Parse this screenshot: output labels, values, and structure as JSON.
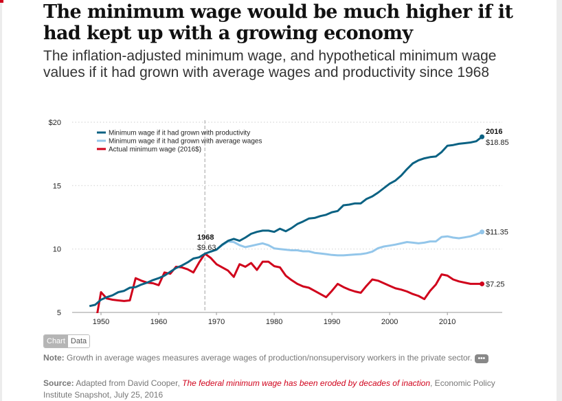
{
  "title": "The minimum wage would be much higher if it had kept up with a growing economy",
  "subtitle": "The inflation-adjusted minimum wage, and hypothetical minimum wage values if it had grown with average wages and productivity since 1968",
  "toggle": {
    "chart": "Chart",
    "data": "Data"
  },
  "note": {
    "label": "Note:",
    "text": "Growth in average wages measures average wages of production/nonsupervisory workers in the private sector.",
    "more": "•••"
  },
  "source": {
    "label": "Source:",
    "prefix": "Adapted from David Cooper, ",
    "link": "The federal minimum wage has been eroded by decades of inaction",
    "suffix": ", Economic Policy Institute Snapshot, July 25, 2016"
  },
  "chart_data": {
    "type": "line",
    "xlim": [
      1945,
      2019.5
    ],
    "ylim": [
      5,
      20
    ],
    "x_ticks": [
      "1950",
      "1960",
      "1970",
      "1980",
      "1990",
      "2000",
      "2010"
    ],
    "x_tick_values": [
      1950,
      1960,
      1970,
      1980,
      1990,
      2000,
      2010
    ],
    "y_ticks": [
      "$20",
      "15",
      "10",
      "5"
    ],
    "y_tick_values": [
      20,
      15,
      10,
      5
    ],
    "grid": "horizontal dotted",
    "legend_placement": "top-left",
    "reference_line": {
      "x": 1968
    },
    "annotations": [
      {
        "year": "1968",
        "value": "$9.63",
        "x": 1968,
        "y": 9.63
      },
      {
        "year": "2016",
        "value": "$18.85",
        "x": 2016,
        "y": 18.85
      },
      {
        "value": "$11.35",
        "x": 2016,
        "y": 11.35
      },
      {
        "value": "$7.25",
        "x": 2016,
        "y": 7.25
      }
    ],
    "series": [
      {
        "name": "Minimum wage if it had grown with productivity",
        "color": "#0b6283",
        "x": [
          1948,
          1949,
          1950,
          1951,
          1952,
          1953,
          1954,
          1955,
          1956,
          1957,
          1958,
          1959,
          1960,
          1961,
          1962,
          1963,
          1964,
          1965,
          1966,
          1967,
          1968,
          1969,
          1970,
          1971,
          1972,
          1973,
          1974,
          1975,
          1976,
          1977,
          1978,
          1979,
          1980,
          1981,
          1982,
          1983,
          1984,
          1985,
          1986,
          1987,
          1988,
          1989,
          1990,
          1991,
          1992,
          1993,
          1994,
          1995,
          1996,
          1997,
          1998,
          1999,
          2000,
          2001,
          2002,
          2003,
          2004,
          2005,
          2006,
          2007,
          2008,
          2009,
          2010,
          2011,
          2012,
          2013,
          2014,
          2015,
          2016
        ],
        "y": [
          5.5,
          5.6,
          6.0,
          6.2,
          6.35,
          6.6,
          6.7,
          6.95,
          7.0,
          7.2,
          7.35,
          7.55,
          7.7,
          7.9,
          8.2,
          8.5,
          8.7,
          8.95,
          9.25,
          9.35,
          9.63,
          9.8,
          9.95,
          10.35,
          10.65,
          10.8,
          10.65,
          10.9,
          11.2,
          11.35,
          11.45,
          11.45,
          11.35,
          11.6,
          11.4,
          11.65,
          11.97,
          12.17,
          12.4,
          12.45,
          12.6,
          12.7,
          12.9,
          13.0,
          13.45,
          13.5,
          13.6,
          13.6,
          13.95,
          14.15,
          14.45,
          14.8,
          15.15,
          15.4,
          15.8,
          16.3,
          16.75,
          17.0,
          17.15,
          17.25,
          17.3,
          17.65,
          18.15,
          18.2,
          18.3,
          18.35,
          18.4,
          18.5,
          18.85
        ]
      },
      {
        "name": "Minimum wage if it had grown with average wages",
        "color": "#93c6ea",
        "x": [
          1968,
          1969,
          1970,
          1971,
          1972,
          1973,
          1974,
          1975,
          1976,
          1977,
          1978,
          1979,
          1980,
          1981,
          1982,
          1983,
          1984,
          1985,
          1986,
          1987,
          1988,
          1989,
          1990,
          1991,
          1992,
          1993,
          1994,
          1995,
          1996,
          1997,
          1998,
          1999,
          2000,
          2001,
          2002,
          2003,
          2004,
          2005,
          2006,
          2007,
          2008,
          2009,
          2010,
          2011,
          2012,
          2013,
          2014,
          2015,
          2016
        ],
        "y": [
          9.63,
          9.8,
          9.95,
          10.3,
          10.6,
          10.55,
          10.3,
          10.15,
          10.25,
          10.35,
          10.45,
          10.3,
          10.05,
          10.0,
          9.95,
          9.9,
          9.9,
          9.82,
          9.82,
          9.7,
          9.65,
          9.6,
          9.53,
          9.5,
          9.5,
          9.53,
          9.57,
          9.6,
          9.67,
          9.8,
          10.07,
          10.2,
          10.27,
          10.35,
          10.45,
          10.55,
          10.5,
          10.45,
          10.5,
          10.6,
          10.6,
          10.95,
          11.0,
          10.9,
          10.85,
          10.92,
          11.0,
          11.15,
          11.35
        ]
      },
      {
        "name": "Actual minimum wage (2016$)",
        "color": "#d0021b",
        "x": [
          1949,
          1950,
          1951,
          1952,
          1953,
          1954,
          1955,
          1956,
          1957,
          1958,
          1959,
          1960,
          1961,
          1962,
          1963,
          1964,
          1965,
          1966,
          1967,
          1968,
          1969,
          1970,
          1971,
          1972,
          1973,
          1974,
          1975,
          1976,
          1977,
          1978,
          1979,
          1980,
          1981,
          1982,
          1983,
          1984,
          1985,
          1986,
          1987,
          1988,
          1989,
          1990,
          1991,
          1992,
          1993,
          1994,
          1995,
          1996,
          1997,
          1998,
          1999,
          2000,
          2001,
          2002,
          2003,
          2004,
          2005,
          2006,
          2007,
          2008,
          2009,
          2010,
          2011,
          2012,
          2013,
          2014,
          2015,
          2016
        ],
        "y": [
          4.0,
          6.6,
          6.1,
          6.0,
          5.95,
          5.9,
          5.95,
          7.7,
          7.5,
          7.35,
          7.3,
          7.15,
          8.15,
          8.05,
          8.6,
          8.55,
          8.4,
          8.15,
          8.95,
          9.63,
          9.3,
          8.8,
          8.55,
          8.3,
          7.8,
          8.8,
          8.6,
          8.9,
          8.35,
          9.0,
          9.0,
          8.65,
          8.55,
          7.9,
          7.55,
          7.25,
          7.05,
          6.95,
          6.7,
          6.45,
          6.2,
          6.7,
          7.25,
          7.0,
          6.8,
          6.65,
          6.55,
          7.1,
          7.6,
          7.5,
          7.3,
          7.1,
          6.9,
          6.8,
          6.65,
          6.45,
          6.3,
          6.05,
          6.7,
          7.2,
          8.0,
          7.9,
          7.6,
          7.45,
          7.35,
          7.25,
          7.25,
          7.25
        ]
      }
    ]
  }
}
